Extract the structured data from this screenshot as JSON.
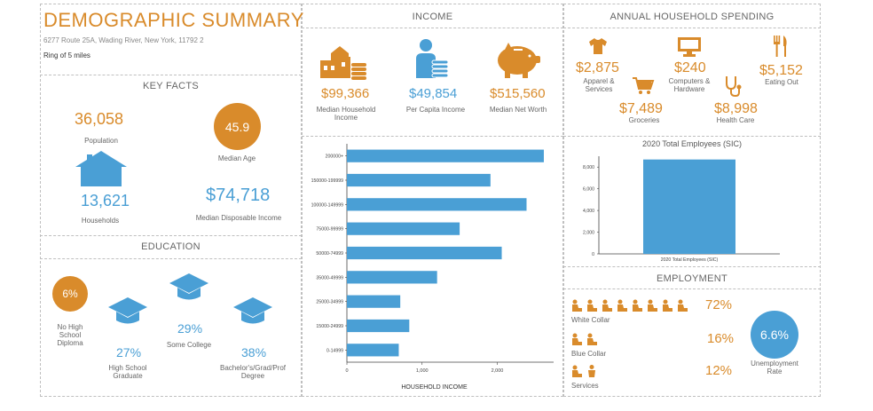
{
  "header": {
    "title": "DEMOGRAPHIC SUMMARY",
    "address": "6277 Route 25A, Wading River, New York, 11792 2",
    "ring": "Ring of 5 miles"
  },
  "key_facts": {
    "title": "KEY FACTS",
    "population_value": "36,058",
    "population_label": "Population",
    "median_age_value": "45.9",
    "median_age_label": "Median Age",
    "households_value": "13,621",
    "households_label": "Households",
    "median_disposable_income_value": "$74,718",
    "median_disposable_income_label": "Median Disposable Income"
  },
  "education": {
    "title": "EDUCATION",
    "no_hs_value": "6%",
    "no_hs_label": "No High School Diploma",
    "hs_value": "27%",
    "hs_label": "High School Graduate",
    "college_value": "29%",
    "college_label": "Some College",
    "bachelor_value": "38%",
    "bachelor_label": "Bachelor's/Grad/Prof Degree"
  },
  "income": {
    "title": "INCOME",
    "median_hh_value": "$99,366",
    "median_hh_label": "Median Household Income",
    "per_capita_value": "$49,854",
    "per_capita_label": "Per Capita Income",
    "net_worth_value": "$515,560",
    "net_worth_label": "Median Net Worth"
  },
  "spending": {
    "title": "ANNUAL HOUSEHOLD SPENDING",
    "apparel_value": "$2,875",
    "apparel_label": "Apparel & Services",
    "computers_value": "$240",
    "computers_label": "Computers & Hardware",
    "eating_value": "$5,152",
    "eating_label": "Eating Out",
    "groceries_value": "$7,489",
    "groceries_label": "Groceries",
    "health_value": "$8,998",
    "health_label": "Health Care"
  },
  "employment": {
    "title": "EMPLOYMENT",
    "white_collar_value": "72%",
    "white_collar_label": "White Collar",
    "blue_collar_value": "16%",
    "blue_collar_label": "Blue Collar",
    "services_value": "12%",
    "services_label": "Services",
    "unemployment_value": "6.6%",
    "unemployment_label": "Unemployment Rate"
  },
  "colors": {
    "orange": "#d98b2b",
    "blue": "#4a9fd5"
  },
  "chart_data": [
    {
      "type": "bar",
      "orientation": "horizontal",
      "title": "",
      "xlabel": "HOUSEHOLD INCOME",
      "ylabel": "",
      "categories": [
        "200000+",
        "150000-199999",
        "100000-149999",
        "75000-99999",
        "50000-74999",
        "35000-49999",
        "25000-34999",
        "15000-24999",
        "0-14999"
      ],
      "values": [
        2620,
        1910,
        2390,
        1500,
        2060,
        1200,
        710,
        830,
        690
      ],
      "xlim": [
        0,
        2750
      ],
      "xticks": [
        0,
        1000,
        2000
      ],
      "xtick_labels": [
        "0",
        "1,000",
        "2,000"
      ],
      "color": "#4a9fd5"
    },
    {
      "type": "bar",
      "title": "2020 Total Employees (SIC)",
      "xlabel": "",
      "ylabel": "",
      "categories": [
        "2020 Total Employees (SIC)"
      ],
      "values": [
        8700
      ],
      "ylim": [
        0,
        9000
      ],
      "yticks": [
        0,
        2000,
        4000,
        6000,
        8000
      ],
      "ytick_labels": [
        "0",
        "2,000",
        "4,000",
        "6,000",
        "8,000"
      ],
      "color": "#4a9fd5"
    }
  ]
}
